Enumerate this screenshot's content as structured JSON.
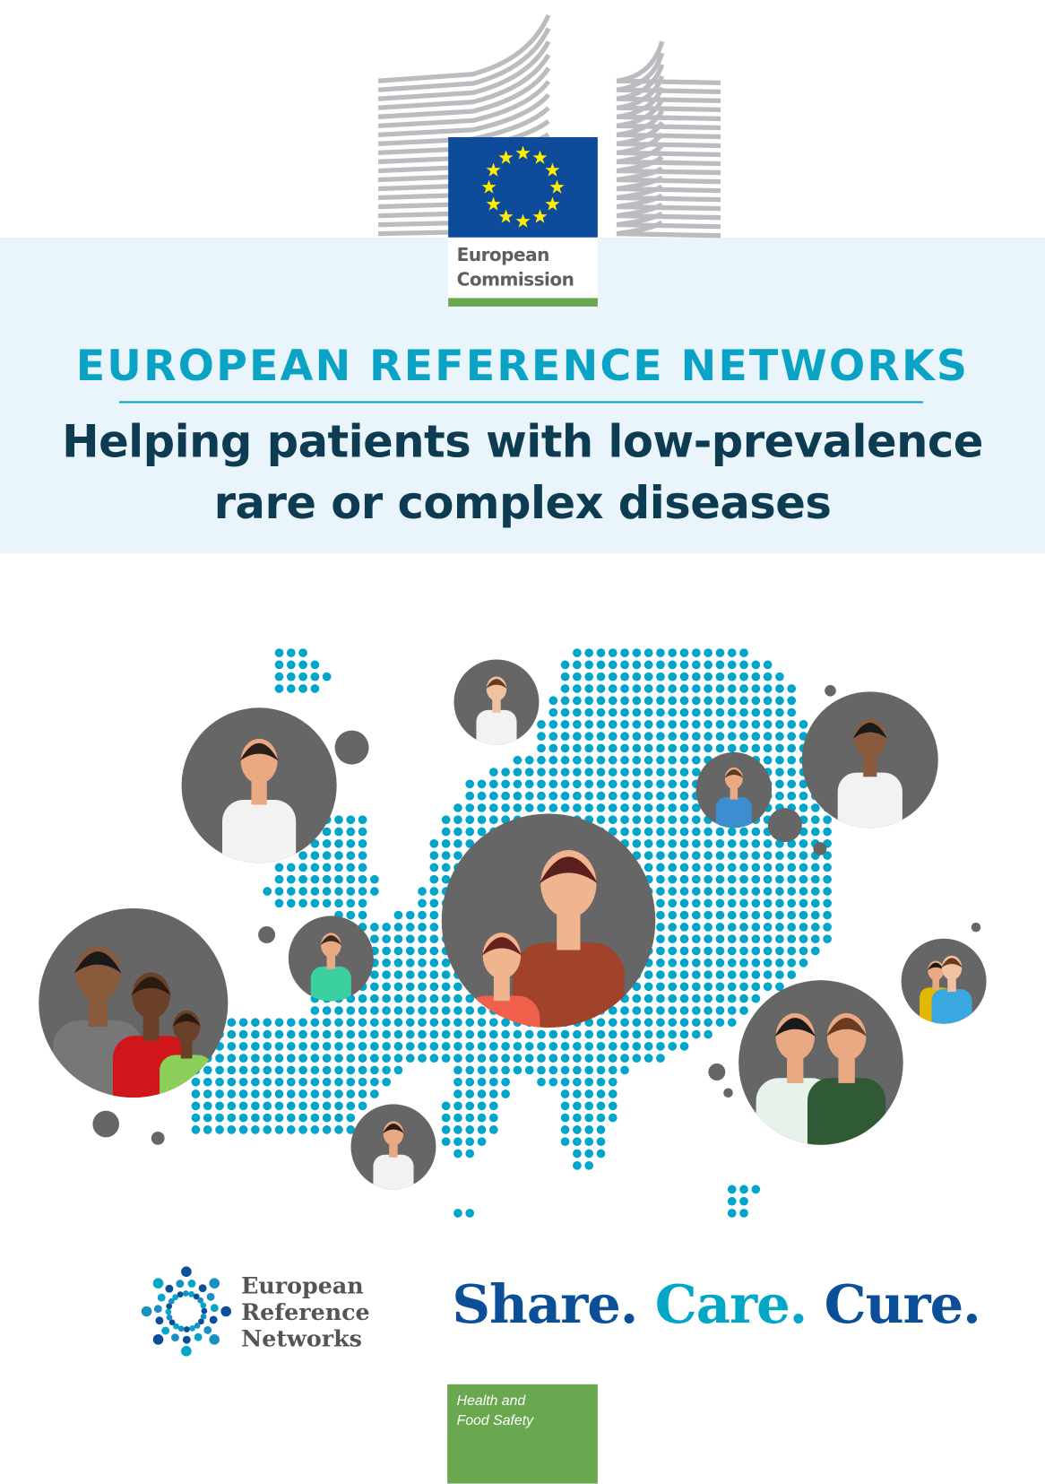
{
  "logo": {
    "line1": "European",
    "line2": "Commission",
    "flag_color": "#0e4c9b",
    "star_color": "#ffed00",
    "bar_color": "#6aa84f"
  },
  "header": {
    "title": "EUROPEAN REFERENCE NETWORKS",
    "subtitle_line1": "Helping patients with low-prevalence",
    "subtitle_line2": "rare or complex diseases"
  },
  "illustration": {
    "map_dot_color": "#00a5cb",
    "portrait_bg_color": "#666666"
  },
  "ern_logo": {
    "line1": "European",
    "line2": "Reference",
    "line3": "Networks"
  },
  "slogan": {
    "share": "Share.",
    "care": "Care.",
    "cure": "Cure.",
    "dark_color": "#0a4f98",
    "light_color": "#00a7c7"
  },
  "dg_box": {
    "line1": "Health and",
    "line2": "Food Safety"
  }
}
